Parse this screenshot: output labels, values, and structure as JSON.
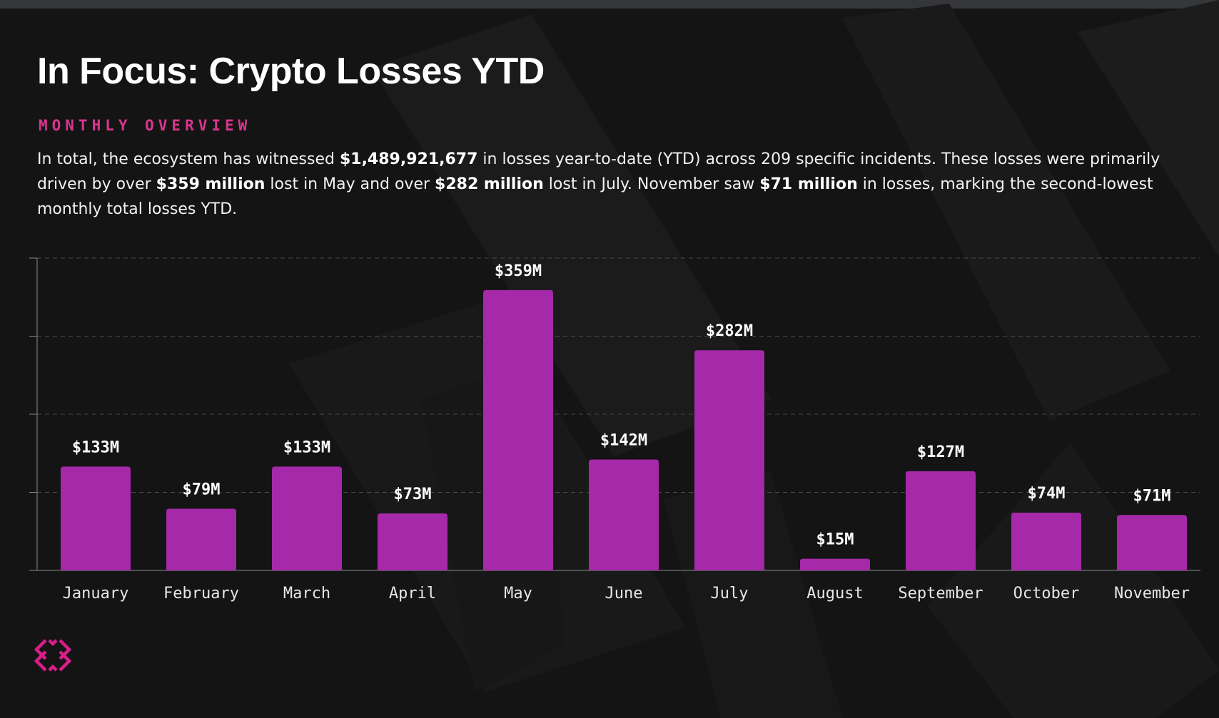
{
  "header": {
    "title": "In Focus: Crypto Losses YTD",
    "subtitle": "MONTHLY OVERVIEW"
  },
  "description": {
    "t1": "In total, the ecosystem has witnessed ",
    "b1": "$1,489,921,677",
    "t2": " in losses year-to-date (YTD) across 209 specific incidents. These losses were primarily driven by over ",
    "b2": "$359 million",
    "t3": " lost in May and over ",
    "b3": "$282 million",
    "t4": " lost in July. November saw ",
    "b4": "$71 million",
    "t5": " in losses, marking the second-lowest monthly total losses YTD."
  },
  "colors": {
    "background": "#141414",
    "bar": "#a529a8",
    "accent": "#d8358f",
    "grid": "#4a4a4a",
    "axis": "#8a8a8a"
  },
  "logo": {
    "icon": "brand-logo-icon"
  },
  "chart_data": {
    "type": "bar",
    "categories": [
      "January",
      "February",
      "March",
      "April",
      "May",
      "June",
      "July",
      "August",
      "September",
      "October",
      "November"
    ],
    "values": [
      133,
      79,
      133,
      73,
      359,
      142,
      282,
      15,
      127,
      74,
      71
    ],
    "data_labels": [
      "$133M",
      "$79M",
      "$133M",
      "$73M",
      "$359M",
      "$142M",
      "$282M",
      "$15M",
      "$127M",
      "$74M",
      "$71M"
    ],
    "unit": "$M",
    "title": "",
    "xlabel": "",
    "ylabel": "",
    "ylim": [
      0,
      400
    ],
    "y_gridlines": [
      100,
      200,
      300,
      400
    ],
    "grid": true,
    "legend": "none"
  }
}
